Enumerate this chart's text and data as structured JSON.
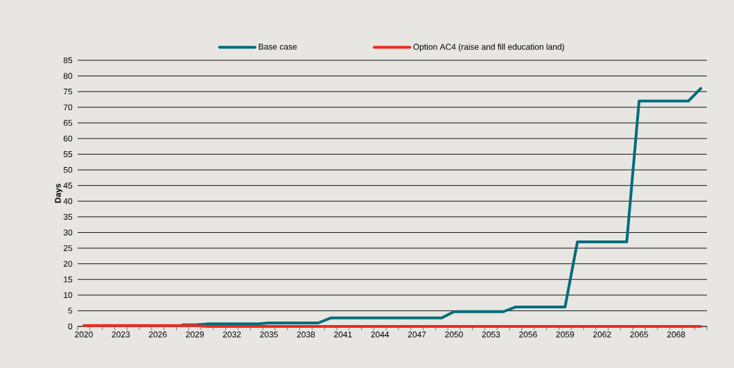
{
  "chart_data": {
    "type": "line",
    "ylabel": "Days",
    "categories": [
      "2020",
      null,
      null,
      "2023",
      null,
      null,
      "2026",
      null,
      null,
      "2029",
      null,
      null,
      "2032",
      null,
      null,
      "2035",
      null,
      null,
      "2038",
      null,
      null,
      "2041",
      null,
      null,
      "2044",
      null,
      null,
      "2047",
      null,
      null,
      "2050",
      null,
      null,
      "2053",
      null,
      null,
      "2056",
      null,
      null,
      "2059",
      null,
      null,
      "2062",
      null,
      null,
      "2065",
      null,
      null,
      "2068",
      null,
      null
    ],
    "series": [
      {
        "name": "Base case",
        "color": "#006d7a",
        "values": [
          null,
          null,
          null,
          null,
          null,
          null,
          null,
          null,
          0.5,
          0.5,
          0.8,
          0.8,
          0.8,
          0.8,
          0.8,
          1.1,
          1.1,
          1.1,
          1.1,
          1.1,
          2.7,
          2.7,
          2.7,
          2.7,
          2.7,
          2.7,
          2.7,
          2.7,
          2.7,
          2.7,
          4.7,
          4.7,
          4.7,
          4.7,
          4.7,
          6.2,
          6.2,
          6.2,
          6.2,
          6.2,
          27,
          27,
          27,
          27,
          27,
          72,
          72,
          72,
          72,
          72,
          76
        ]
      },
      {
        "name": "Option AC4 (raise and fill education land)",
        "color": "#ee2a1f",
        "values": [
          0.3,
          0.3,
          0.3,
          0.3,
          0.3,
          0.3,
          0.3,
          0.3,
          0.3,
          0.3,
          0,
          0,
          0,
          0,
          0,
          0,
          0,
          0,
          0,
          0,
          0,
          0,
          0,
          0,
          0,
          0,
          0,
          0,
          0,
          0,
          0,
          0,
          0,
          0,
          0,
          0,
          0,
          0,
          0,
          0,
          0,
          0,
          0,
          0,
          0,
          0,
          0,
          0,
          0,
          0,
          0
        ]
      }
    ],
    "ylim": [
      0,
      85
    ],
    "yticks": [
      0,
      5,
      10,
      15,
      20,
      25,
      30,
      35,
      40,
      45,
      50,
      55,
      60,
      65,
      70,
      75,
      80,
      85
    ],
    "grid": "y",
    "legend": "top",
    "marker": "none",
    "line_style": "solid"
  }
}
